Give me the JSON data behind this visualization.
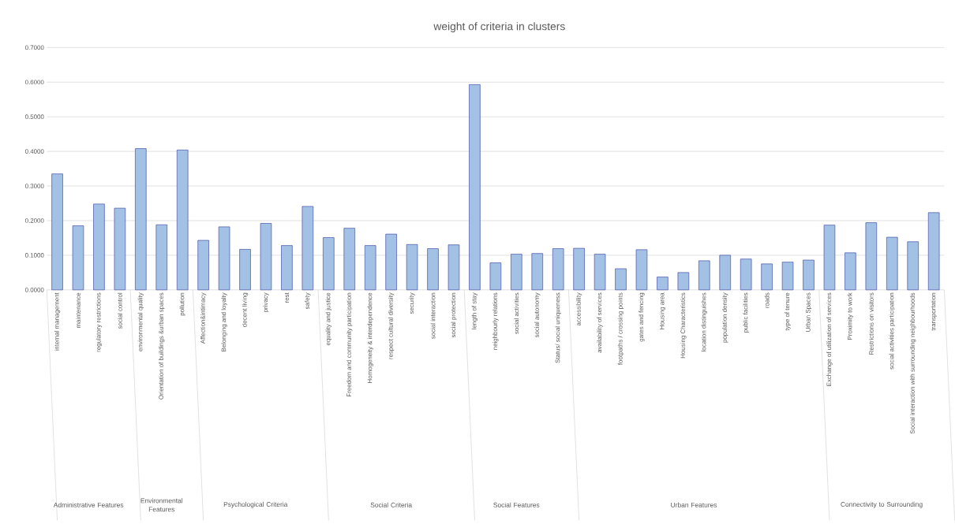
{
  "chart_data": {
    "type": "bar",
    "title": "weight of criteria in clusters",
    "categories": [
      "internal management",
      "maintenance",
      "regulatory restrictions",
      "social control",
      "environmental quality",
      "Orientation of buildings &urban spaces",
      "pollution",
      "Affection&intimacy",
      "Belonging and loyalty",
      "decent living",
      "privacy",
      "rest",
      "safety",
      "equality and justice",
      "Freedom and community participation",
      "Homogeneity & interdependence",
      "respect cultural diversity",
      "security",
      "social interaction",
      "social protection",
      "length of stay",
      "neighbourly relations",
      "social activities",
      "social autonomy",
      "Status/ social uniqueness",
      "accessibility",
      "availability of services",
      "footpaths / crossing points",
      "gates and fencing",
      "Housing area",
      "Housing Characteristics",
      "location distinguishes",
      "population density",
      "public facilities",
      "roads",
      "type of tenure",
      "Urban Spaces",
      "Exchange of utilization of services",
      "Proximity to work",
      "Restrictions on visitors",
      "social activities participation",
      "Social interaction with surrounding neighbourhoods",
      "transportation"
    ],
    "values": [
      0.335,
      0.185,
      0.248,
      0.236,
      0.408,
      0.188,
      0.404,
      0.143,
      0.182,
      0.117,
      0.192,
      0.128,
      0.241,
      0.151,
      0.178,
      0.128,
      0.161,
      0.131,
      0.119,
      0.13,
      0.593,
      0.078,
      0.103,
      0.105,
      0.119,
      0.12,
      0.103,
      0.061,
      0.116,
      0.037,
      0.05,
      0.084,
      0.1,
      0.089,
      0.075,
      0.08,
      0.086,
      0.187,
      0.107,
      0.194,
      0.152,
      0.139,
      0.223
    ],
    "color": "#a3c1e5",
    "ylim": [
      0,
      0.7
    ],
    "yticks": [
      {
        "value": 0,
        "label": "0.0000"
      },
      {
        "value": 0.1,
        "label": "0.1000"
      },
      {
        "value": 0.2,
        "label": "0.2000"
      },
      {
        "value": 0.3,
        "label": "0.3000"
      },
      {
        "value": 0.4,
        "label": "0.4000"
      },
      {
        "value": 0.5,
        "label": "0.5000"
      },
      {
        "value": 0.6,
        "label": "0.6000"
      },
      {
        "value": 0.7,
        "label": "0.7000"
      }
    ],
    "grid": "y",
    "annotations": [
      "Administrative Features",
      "Environmental Features",
      "Psychological Criteria",
      "Social Criteria",
      "Social Features",
      "Urban Features",
      "Connectivity to Surrounding"
    ]
  }
}
